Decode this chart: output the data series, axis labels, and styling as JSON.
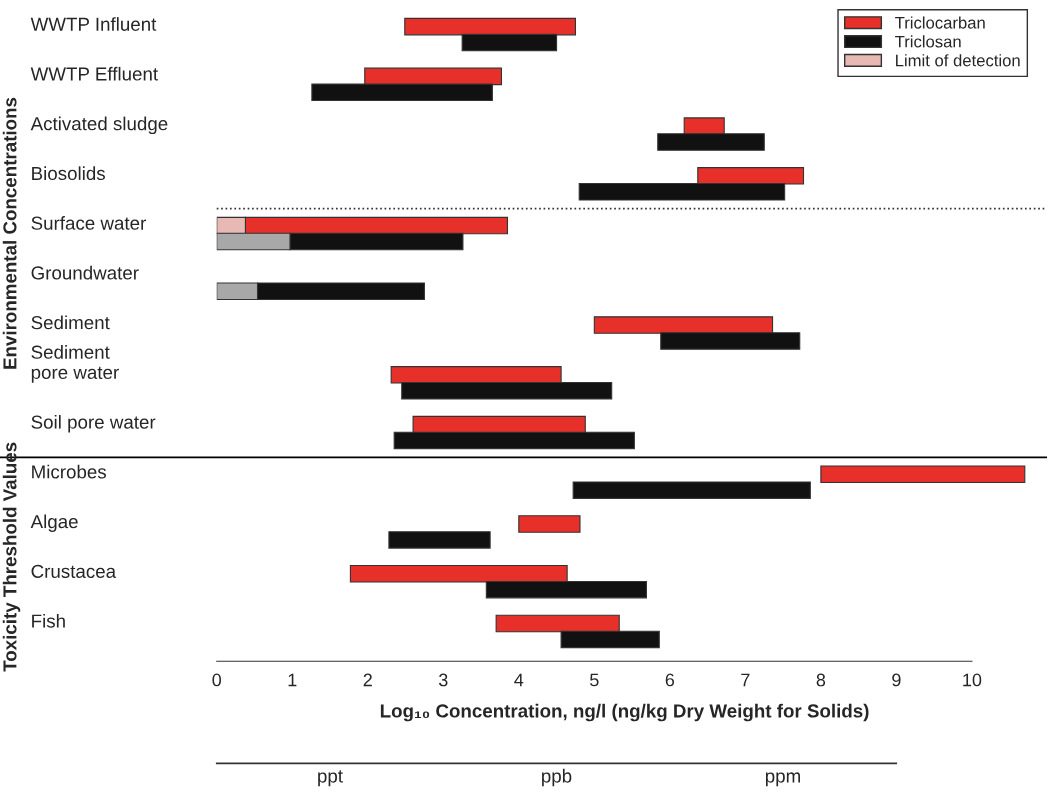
{
  "chart_data": [
    {
      "type": "bar",
      "orientation": "horizontal",
      "categories": [
        "WWTP Influent",
        "WWTP Effluent",
        "Activated sludge",
        "Biosolids",
        "Surface water",
        "Groundwater",
        "Sediment",
        "Sediment\npore water",
        "Soil pore water",
        "Microbes",
        "Algae",
        "Crustacea",
        "Fish"
      ],
      "series": [
        {
          "name": "Triclocarban",
          "color": "#e8302a",
          "base": [
            2.49,
            1.96,
            6.19,
            6.37,
            0.38,
            null,
            5.0,
            2.31,
            2.6,
            8.0,
            4.0,
            1.77,
            3.7
          ],
          "values": [
            2.26,
            1.81,
            0.53,
            1.4,
            3.47,
            null,
            2.36,
            2.25,
            2.28,
            2.7,
            0.81,
            2.87,
            1.63
          ]
        },
        {
          "name": "Triclosan",
          "color": "#111111",
          "base": [
            3.25,
            1.26,
            5.84,
            4.8,
            0.97,
            0.54,
            5.88,
            2.45,
            2.35,
            4.72,
            2.28,
            3.57,
            4.56
          ],
          "values": [
            1.25,
            2.39,
            1.41,
            2.72,
            2.29,
            2.21,
            1.84,
            2.78,
            3.18,
            3.14,
            1.34,
            2.12,
            1.3
          ]
        },
        {
          "name": "Limit of detection",
          "color": "#e8b8b4",
          "base": [
            null,
            null,
            null,
            null,
            0,
            null,
            null,
            null,
            null,
            null,
            null,
            null,
            null
          ],
          "values": [
            null,
            null,
            null,
            null,
            0.38,
            null,
            null,
            null,
            null,
            null,
            null,
            null,
            null
          ]
        },
        {
          "color": "#a8a8a8",
          "base": [
            null,
            null,
            null,
            null,
            0,
            0,
            null,
            null,
            null,
            null,
            null,
            null,
            null
          ],
          "values": [
            null,
            null,
            null,
            null,
            0.97,
            0.54,
            null,
            null,
            null,
            null,
            null,
            null,
            null
          ]
        }
      ],
      "xlim": [
        0,
        10.8
      ],
      "xticks": [
        0,
        1,
        2,
        3,
        4,
        5,
        6,
        7,
        8,
        9,
        10
      ],
      "xlabel": "Log₁₀ Concentration, ng/l (ng/kg Dry Weight for Solids)",
      "ref_lines": [
        {
          "axis": "y",
          "value": "Surface water",
          "line_style": "dotted",
          "color": "#333333"
        },
        {
          "axis": "y",
          "value": "Microbes",
          "line_style": "solid",
          "color": "#000000"
        }
      ],
      "annotations": [
        "Environmental Concentrations",
        "Toxicity Threshold Values"
      ],
      "legend": "top right"
    },
    {
      "type": "other",
      "categories": [
        "ppt",
        "ppb",
        "ppm"
      ]
    }
  ]
}
